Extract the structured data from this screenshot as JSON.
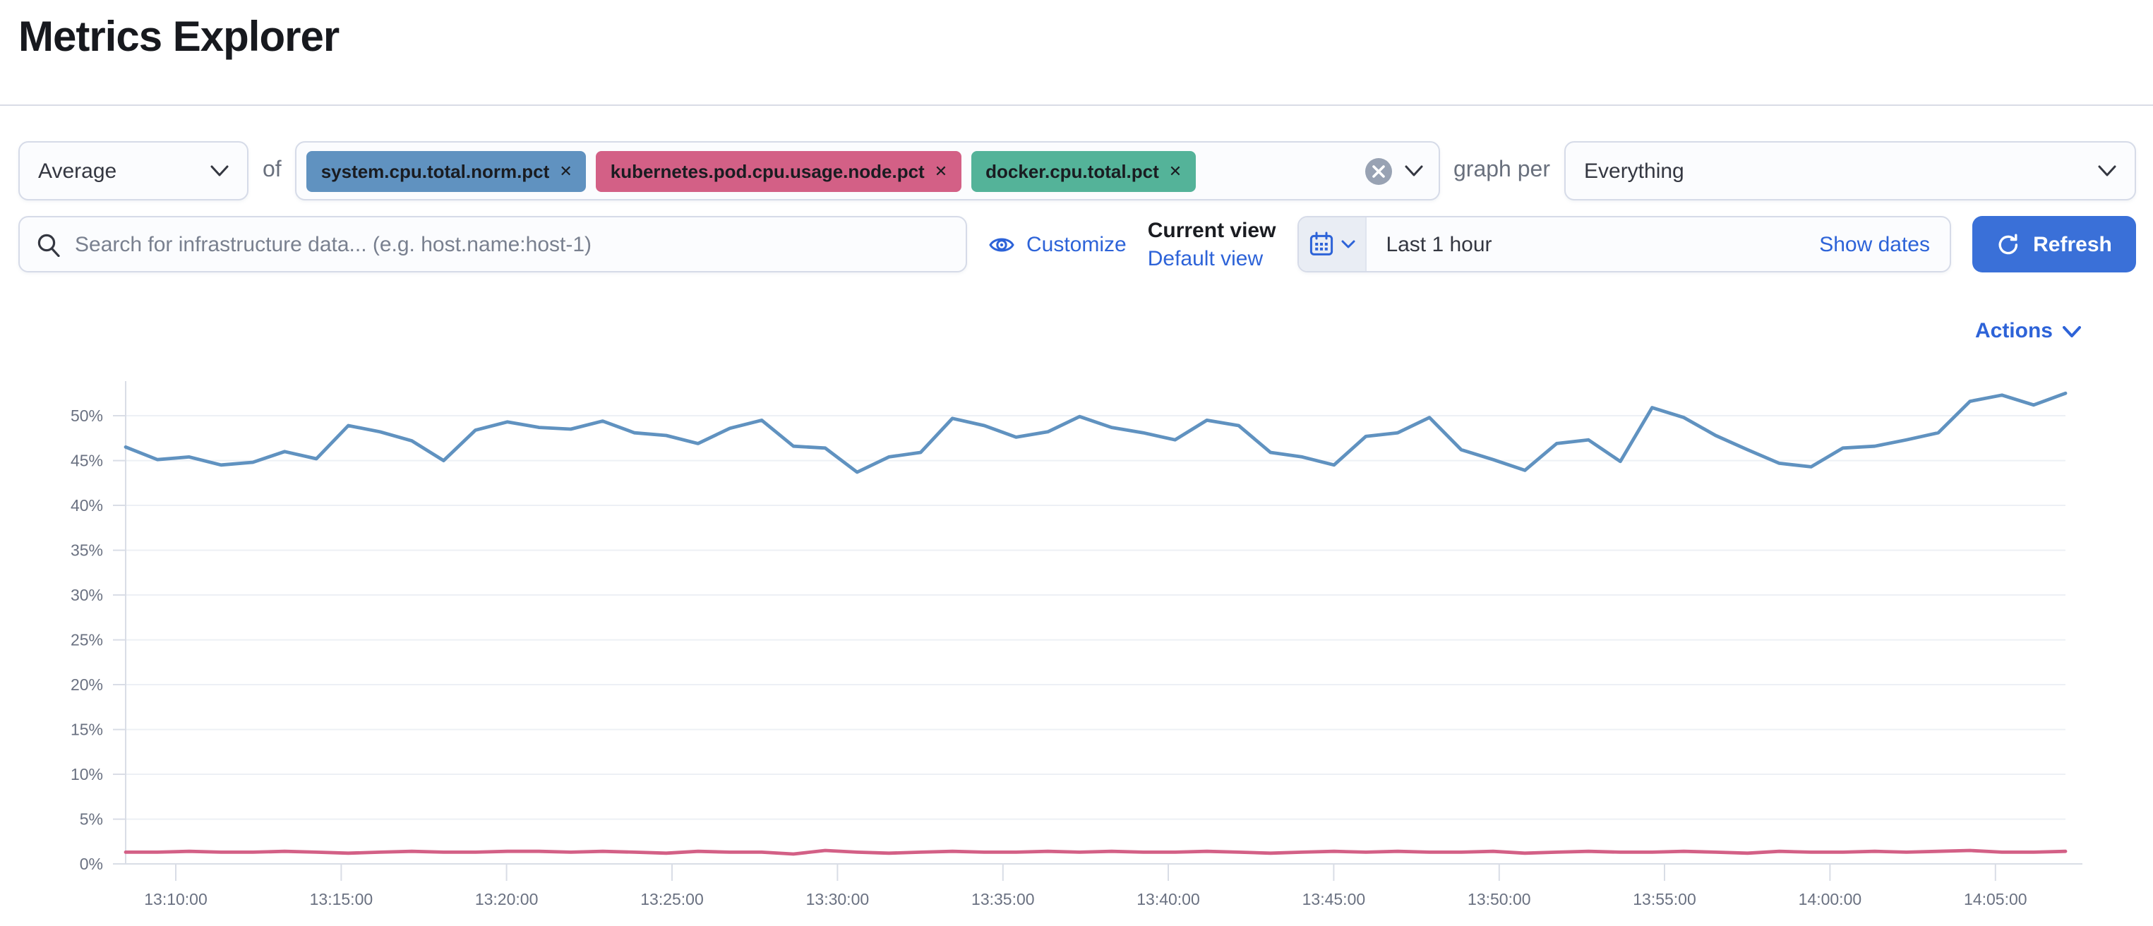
{
  "page": {
    "title": "Metrics Explorer"
  },
  "toolbar": {
    "aggregation": {
      "value": "Average"
    },
    "of_label": "of",
    "metrics": [
      {
        "label": "system.cpu.total.norm.pct",
        "color": "#6092C0"
      },
      {
        "label": "kubernetes.pod.cpu.usage.node.pct",
        "color": "#D36086"
      },
      {
        "label": "docker.cpu.total.pct",
        "color": "#54B399"
      }
    ],
    "graph_per_label": "graph per",
    "graph_per": {
      "value": "Everything"
    }
  },
  "search": {
    "placeholder": "Search for infrastructure data... (e.g. host.name:host-1)"
  },
  "view_controls": {
    "customize_label": "Customize",
    "current_view_label": "Current view",
    "default_view_label": "Default view"
  },
  "datepicker": {
    "value": "Last 1 hour",
    "show_dates_label": "Show dates",
    "refresh_label": "Refresh"
  },
  "actions_label": "Actions",
  "icons": {
    "metric_remove": "✕"
  },
  "colors": {
    "accent_link": "#2d63d8",
    "primary_button": "#3a70d8",
    "series_blue": "#6092C0",
    "series_pink": "#D36086"
  },
  "chart_data": {
    "type": "line",
    "title": "",
    "xlabel": "",
    "ylabel": "",
    "unit": "percent",
    "grid": true,
    "legend": "none",
    "ylim": [
      0,
      55
    ],
    "y_ticks": [
      "50%",
      "45%",
      "40%",
      "35%",
      "30%",
      "25%",
      "20%",
      "15%",
      "10%",
      "5%",
      "0%"
    ],
    "x_ticks": [
      "13:10:00",
      "13:15:00",
      "13:20:00",
      "13:25:00",
      "13:30:00",
      "13:35:00",
      "13:40:00",
      "13:45:00",
      "13:50:00",
      "13:55:00",
      "14:00:00",
      "14:05:00"
    ],
    "x_start": "13:08:30",
    "x_interval_seconds": 60,
    "series": [
      {
        "name": "system.cpu.total.norm.pct",
        "color": "#6092C0",
        "values": [
          46.5,
          45.1,
          45.4,
          44.5,
          44.8,
          46.0,
          45.2,
          48.9,
          48.2,
          47.2,
          45.0,
          48.4,
          49.3,
          48.7,
          48.5,
          49.4,
          48.1,
          47.8,
          46.9,
          48.6,
          49.5,
          46.6,
          46.4,
          43.7,
          45.4,
          45.9,
          49.7,
          48.9,
          47.6,
          48.2,
          49.9,
          48.7,
          48.1,
          47.3,
          49.5,
          48.9,
          45.9,
          45.4,
          44.5,
          47.7,
          48.1,
          49.8,
          46.2,
          45.1,
          43.9,
          46.9,
          47.3,
          44.9,
          50.9,
          49.8,
          47.8,
          46.2,
          44.7,
          44.3,
          46.4,
          46.6,
          47.3,
          48.1,
          51.6,
          52.3,
          51.2,
          52.5
        ]
      },
      {
        "name": "kubernetes.pod.cpu.usage.node.pct",
        "color": "#D36086",
        "values": [
          1.3,
          1.3,
          1.4,
          1.3,
          1.3,
          1.4,
          1.3,
          1.2,
          1.3,
          1.4,
          1.3,
          1.3,
          1.4,
          1.4,
          1.3,
          1.4,
          1.3,
          1.2,
          1.4,
          1.3,
          1.3,
          1.1,
          1.5,
          1.3,
          1.2,
          1.3,
          1.4,
          1.3,
          1.3,
          1.4,
          1.3,
          1.4,
          1.3,
          1.3,
          1.4,
          1.3,
          1.2,
          1.3,
          1.4,
          1.3,
          1.4,
          1.3,
          1.3,
          1.4,
          1.2,
          1.3,
          1.4,
          1.3,
          1.3,
          1.4,
          1.3,
          1.2,
          1.4,
          1.3,
          1.3,
          1.4,
          1.3,
          1.4,
          1.5,
          1.3,
          1.3,
          1.4
        ]
      }
    ]
  }
}
